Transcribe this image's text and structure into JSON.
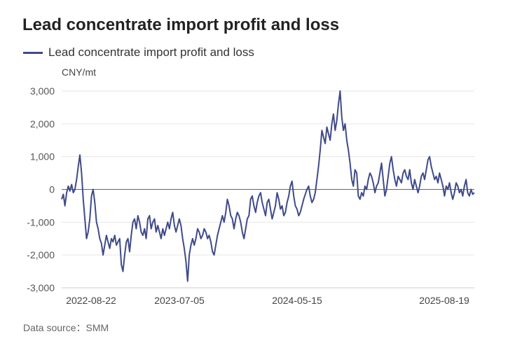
{
  "header": {
    "title": "Lead concentrate import profit and loss"
  },
  "legend": {
    "label": "Lead concentrate import profit and loss"
  },
  "unit": "CNY/mt",
  "footer": {
    "source": "Data source：SMM"
  },
  "colors": {
    "series": "#3f4a8a",
    "grid": "#e6e6e6",
    "zero_line": "#666666"
  },
  "chart_data": {
    "type": "line",
    "title": "Lead concentrate import profit and loss",
    "ylabel": "CNY/mt",
    "ylim": [
      -3000,
      3000
    ],
    "yticks": [
      3000,
      2000,
      1000,
      0,
      -1000,
      -2000,
      -3000
    ],
    "ytick_labels": [
      "3,000",
      "2,000",
      "1,000",
      "0",
      "-1,000",
      "-2,000",
      "-3,000"
    ],
    "xtick_labels": [
      "2022-08-22",
      "2023-07-05",
      "2024-05-15",
      "2025-08-19"
    ],
    "grid": true,
    "legend_position": "top-left",
    "series": [
      {
        "name": "Lead concentrate import profit and loss",
        "values": [
          -300,
          -150,
          -500,
          -100,
          100,
          -50,
          150,
          -100,
          0,
          300,
          700,
          1050,
          500,
          -300,
          -900,
          -1500,
          -1300,
          -900,
          -200,
          0,
          -400,
          -1000,
          -1200,
          -1500,
          -1650,
          -2000,
          -1700,
          -1400,
          -1600,
          -1800,
          -1500,
          -1600,
          -1400,
          -1700,
          -1600,
          -1500,
          -2300,
          -2500,
          -2000,
          -1600,
          -1500,
          -1900,
          -1400,
          -1000,
          -900,
          -1200,
          -800,
          -1000,
          -1300,
          -1400,
          -1200,
          -1500,
          -900,
          -800,
          -1200,
          -1000,
          -900,
          -1300,
          -1100,
          -1300,
          -1500,
          -1200,
          -1400,
          -1200,
          -1000,
          -1200,
          -900,
          -700,
          -1100,
          -1300,
          -1100,
          -900,
          -1100,
          -1500,
          -1800,
          -2200,
          -2800,
          -2000,
          -1700,
          -1500,
          -1700,
          -1500,
          -1200,
          -1300,
          -1500,
          -1400,
          -1200,
          -1300,
          -1500,
          -1400,
          -1600,
          -1900,
          -2000,
          -1700,
          -1400,
          -1200,
          -1000,
          -800,
          -1000,
          -700,
          -300,
          -500,
          -800,
          -900,
          -1200,
          -900,
          -700,
          -800,
          -1000,
          -1300,
          -1500,
          -1200,
          -900,
          -800,
          -300,
          -200,
          -500,
          -700,
          -400,
          -200,
          -100,
          -400,
          -600,
          -800,
          -400,
          -300,
          -600,
          -900,
          -700,
          -500,
          -100,
          -300,
          -600,
          -500,
          -800,
          -700,
          -400,
          -200,
          100,
          250,
          -200,
          -500,
          -600,
          -800,
          -700,
          -500,
          -300,
          -150,
          0,
          100,
          -200,
          -400,
          -300,
          -100,
          300,
          700,
          1200,
          1800,
          1600,
          1400,
          1900,
          1700,
          1500,
          2000,
          2300,
          1800,
          2100,
          2600,
          3000,
          2200,
          1800,
          2000,
          1500,
          1200,
          800,
          300,
          100,
          600,
          500,
          -200,
          -300,
          -100,
          -200,
          100,
          0,
          300,
          500,
          400,
          200,
          -100,
          100,
          200,
          500,
          800,
          300,
          -200,
          0,
          400,
          800,
          1000,
          600,
          300,
          100,
          400,
          300,
          200,
          500,
          600,
          400,
          300,
          600,
          200,
          0,
          300,
          100,
          -100,
          100,
          400,
          500,
          300,
          600,
          900,
          1000,
          700,
          500,
          300,
          400,
          200,
          500,
          300,
          100,
          -200,
          100,
          0,
          200,
          -100,
          -300,
          -100,
          200,
          100,
          -100,
          0,
          -200,
          100,
          300,
          -100,
          -200,
          0,
          -150,
          -100
        ]
      }
    ]
  }
}
